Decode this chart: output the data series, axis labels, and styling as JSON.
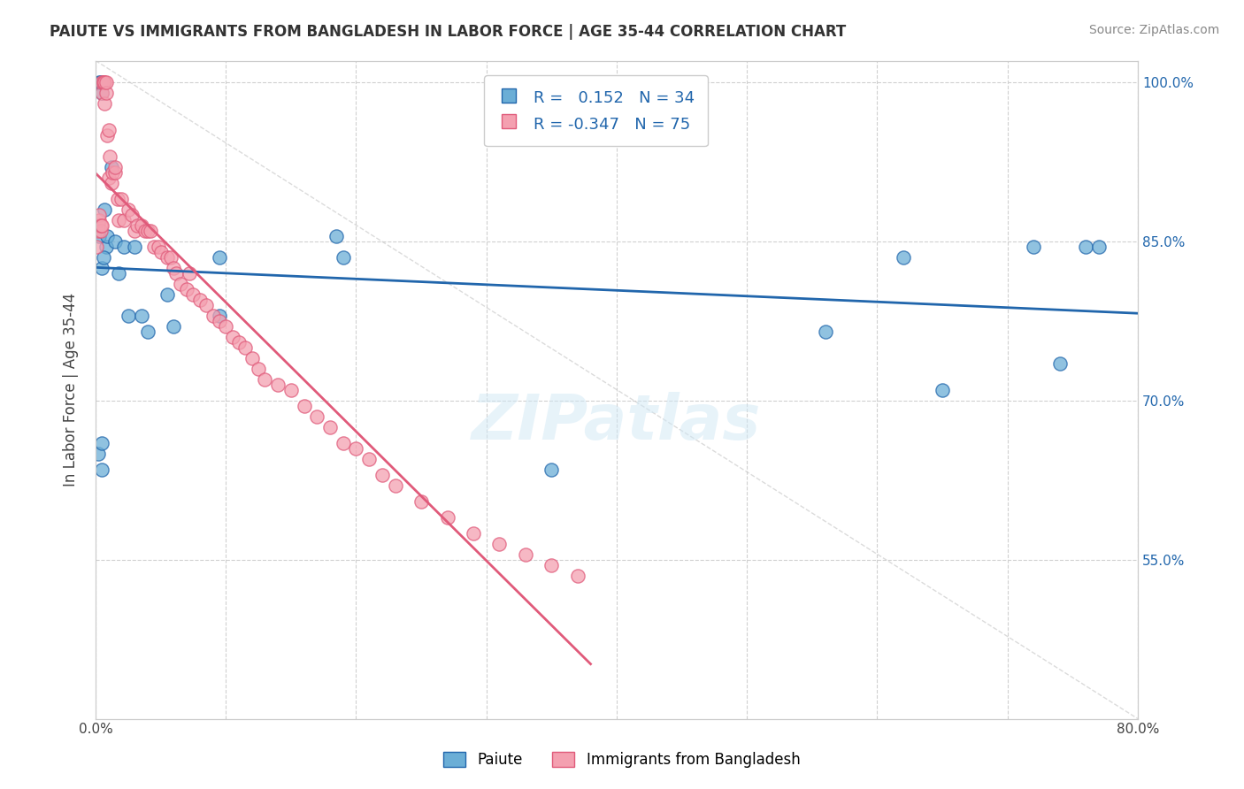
{
  "title": "PAIUTE VS IMMIGRANTS FROM BANGLADESH IN LABOR FORCE | AGE 35-44 CORRELATION CHART",
  "source": "Source: ZipAtlas.com",
  "xlabel": "",
  "ylabel": "In Labor Force | Age 35-44",
  "xlim": [
    0.0,
    0.8
  ],
  "ylim": [
    0.4,
    1.02
  ],
  "ytick_labels": [
    "55.0%",
    "70.0%",
    "85.0%",
    "100.0%"
  ],
  "ytick_values": [
    0.55,
    0.7,
    0.85,
    1.0
  ],
  "xtick_labels": [
    "0.0%",
    "",
    "",
    "",
    "",
    "",
    "",
    "",
    "80.0%"
  ],
  "xtick_values": [
    0.0,
    0.1,
    0.2,
    0.3,
    0.4,
    0.5,
    0.6,
    0.7,
    0.8
  ],
  "legend_label1": "Paiute",
  "legend_label2": "Immigrants from Bangladesh",
  "R1": 0.152,
  "N1": 34,
  "R2": -0.347,
  "N2": 75,
  "color_blue": "#6baed6",
  "color_pink": "#f4a0b0",
  "color_blue_line": "#2166ac",
  "color_pink_line": "#e05a7a",
  "color_diag": "#cccccc",
  "paiute_x": [
    0.002,
    0.005,
    0.005,
    0.008,
    0.012,
    0.005,
    0.003,
    0.004,
    0.007,
    0.003,
    0.005,
    0.006,
    0.009,
    0.015,
    0.018,
    0.022,
    0.025,
    0.03,
    0.035,
    0.04,
    0.055,
    0.06,
    0.095,
    0.095,
    0.185,
    0.19,
    0.35,
    0.56,
    0.62,
    0.65,
    0.72,
    0.74,
    0.76,
    0.77
  ],
  "paiute_y": [
    0.65,
    0.66,
    0.635,
    0.845,
    0.92,
    0.99,
    1.0,
    1.0,
    0.88,
    0.855,
    0.825,
    0.835,
    0.855,
    0.85,
    0.82,
    0.845,
    0.78,
    0.845,
    0.78,
    0.765,
    0.8,
    0.77,
    0.835,
    0.78,
    0.855,
    0.835,
    0.635,
    0.765,
    0.835,
    0.71,
    0.845,
    0.735,
    0.845,
    0.845
  ],
  "bangladesh_x": [
    0.001,
    0.002,
    0.002,
    0.003,
    0.003,
    0.004,
    0.004,
    0.005,
    0.005,
    0.005,
    0.006,
    0.006,
    0.007,
    0.007,
    0.008,
    0.008,
    0.009,
    0.01,
    0.01,
    0.011,
    0.012,
    0.013,
    0.015,
    0.015,
    0.017,
    0.018,
    0.02,
    0.022,
    0.025,
    0.028,
    0.03,
    0.032,
    0.035,
    0.038,
    0.04,
    0.042,
    0.045,
    0.048,
    0.05,
    0.055,
    0.058,
    0.06,
    0.062,
    0.065,
    0.07,
    0.072,
    0.075,
    0.08,
    0.085,
    0.09,
    0.095,
    0.1,
    0.105,
    0.11,
    0.115,
    0.12,
    0.125,
    0.13,
    0.14,
    0.15,
    0.16,
    0.17,
    0.18,
    0.19,
    0.2,
    0.21,
    0.22,
    0.23,
    0.25,
    0.27,
    0.29,
    0.31,
    0.33,
    0.35,
    0.37
  ],
  "bangladesh_y": [
    0.845,
    0.86,
    0.865,
    0.87,
    0.875,
    0.86,
    0.865,
    0.865,
    0.99,
    1.0,
    1.0,
    1.0,
    0.98,
    1.0,
    0.99,
    1.0,
    0.95,
    0.91,
    0.955,
    0.93,
    0.905,
    0.915,
    0.915,
    0.92,
    0.89,
    0.87,
    0.89,
    0.87,
    0.88,
    0.875,
    0.86,
    0.865,
    0.865,
    0.86,
    0.86,
    0.86,
    0.845,
    0.845,
    0.84,
    0.835,
    0.835,
    0.825,
    0.82,
    0.81,
    0.805,
    0.82,
    0.8,
    0.795,
    0.79,
    0.78,
    0.775,
    0.77,
    0.76,
    0.755,
    0.75,
    0.74,
    0.73,
    0.72,
    0.715,
    0.71,
    0.695,
    0.685,
    0.675,
    0.66,
    0.655,
    0.645,
    0.63,
    0.62,
    0.605,
    0.59,
    0.575,
    0.565,
    0.555,
    0.545,
    0.535
  ],
  "watermark": "ZIPatlas",
  "background_color": "#ffffff",
  "grid_color": "#d0d0d0"
}
